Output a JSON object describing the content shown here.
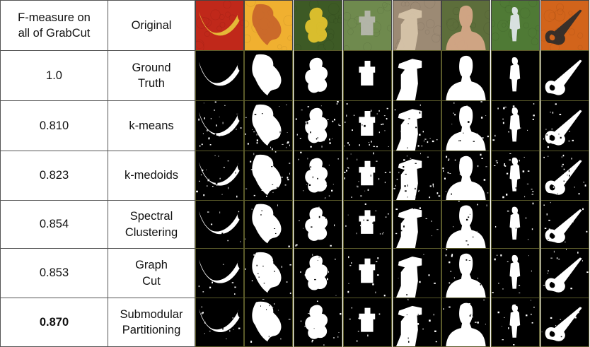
{
  "header": {
    "score_label_line1": "F-measure on",
    "score_label_line2": "all of GrabCut",
    "original_label": "Original"
  },
  "rows": [
    {
      "score": "1.0",
      "method_line1": "Ground",
      "method_line2": "Truth",
      "bold": false
    },
    {
      "score": "0.810",
      "method_line1": "k-means",
      "method_line2": "",
      "bold": false
    },
    {
      "score": "0.823",
      "method_line1": "k-medoids",
      "method_line2": "",
      "bold": false
    },
    {
      "score": "0.854",
      "method_line1": "Spectral",
      "method_line2": "Clustering",
      "bold": false
    },
    {
      "score": "0.853",
      "method_line1": "Graph",
      "method_line2": "Cut",
      "bold": false
    },
    {
      "score": "0.870",
      "method_line1": "Submodular",
      "method_line2": "Partitioning",
      "bold": true
    }
  ],
  "images": [
    {
      "subject": "banana-on-strawberries",
      "bg": "#c0281a",
      "fg": "#e8c43a"
    },
    {
      "subject": "clay-bird-figurine",
      "bg": "#f0b030",
      "fg": "#c8642a"
    },
    {
      "subject": "yellow-flower",
      "bg": "#3d5a25",
      "fg": "#e6c52e"
    },
    {
      "subject": "gravestone",
      "bg": "#6f8a4e",
      "fg": "#b9b9b0"
    },
    {
      "subject": "llama",
      "bg": "#9c8a74",
      "fg": "#d8c6aa"
    },
    {
      "subject": "smiling-man",
      "bg": "#5d6e3b",
      "fg": "#d9a88a"
    },
    {
      "subject": "person-in-park",
      "bg": "#4f7a35",
      "fg": "#e4e8ef"
    },
    {
      "subject": "scissors-on-oranges",
      "bg": "#d2641b",
      "fg": "#2a2a2a"
    }
  ],
  "colors": {
    "mask_bg": "#000000",
    "mask_fg": "#ffffff",
    "grid": "#555555"
  }
}
